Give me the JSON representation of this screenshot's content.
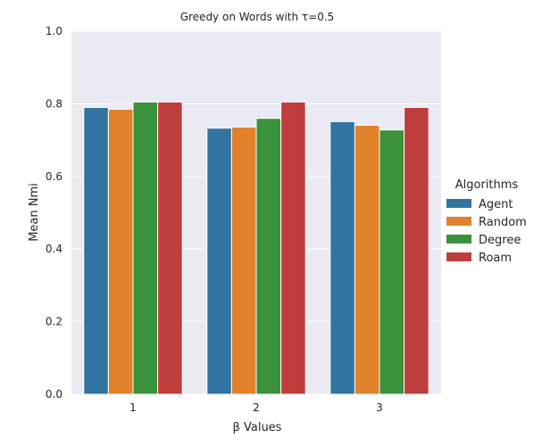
{
  "chart_data": {
    "type": "bar",
    "title": "Greedy on Words with τ=0.5",
    "xlabel": "β Values",
    "ylabel": "Mean Nmi",
    "categories": [
      "1",
      "2",
      "3"
    ],
    "ylim": [
      0,
      1.0
    ],
    "yticks": [
      "0.0",
      "0.2",
      "0.4",
      "0.6",
      "0.8",
      "1.0"
    ],
    "grid": true,
    "legend_title": "Algorithms",
    "legend_position": "right",
    "series": [
      {
        "name": "Agent",
        "color": "#3274a1",
        "values": [
          0.79,
          0.733,
          0.751
        ]
      },
      {
        "name": "Random",
        "color": "#e1812c",
        "values": [
          0.785,
          0.736,
          0.741
        ]
      },
      {
        "name": "Degree",
        "color": "#3a923a",
        "values": [
          0.805,
          0.76,
          0.728
        ]
      },
      {
        "name": "Roam",
        "color": "#c03d3e",
        "values": [
          0.805,
          0.805,
          0.79
        ]
      }
    ]
  }
}
